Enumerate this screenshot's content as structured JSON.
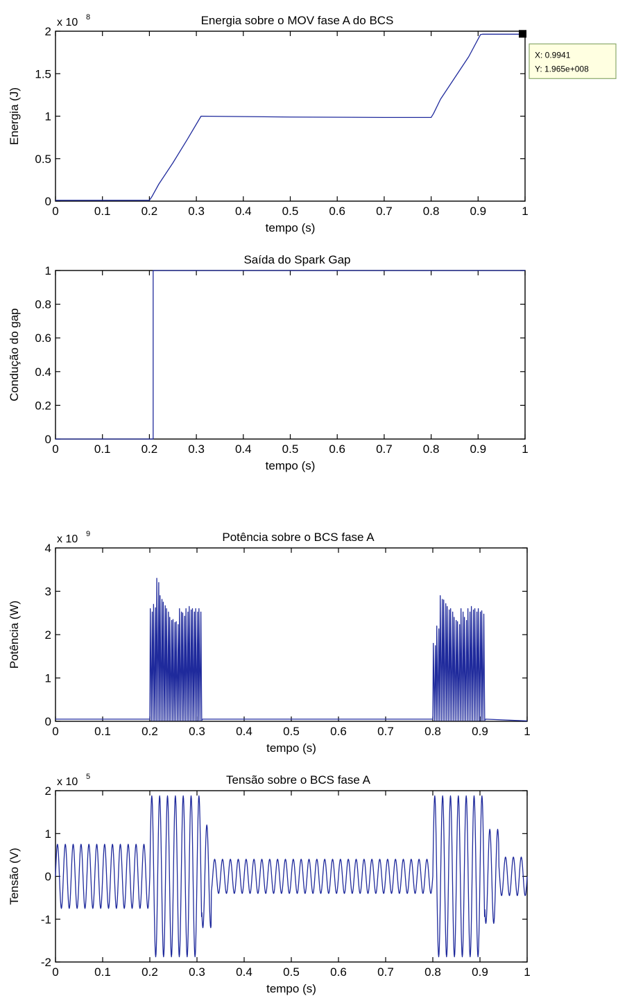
{
  "colors": {
    "line": "#1f2a9c",
    "axis": "#000000",
    "background": "#ffffff",
    "datatip_bg": "#ffffe1",
    "datatip_border": "#8aa86a"
  },
  "chart_data": [
    {
      "type": "line",
      "title": "Energia sobre o MOV fase A do BCS",
      "xlabel": "tempo (s)",
      "ylabel": "Energia (J)",
      "xlim": [
        0,
        1
      ],
      "ylim": [
        0,
        2
      ],
      "multiplier_label": "x 10",
      "multiplier_exp": "8",
      "xticks": [
        0,
        0.1,
        0.2,
        0.3,
        0.4,
        0.5,
        0.6,
        0.7,
        0.8,
        0.9,
        1
      ],
      "xtick_labels": [
        "0",
        "0.1",
        "0.2",
        "0.3",
        "0.4",
        "0.5",
        "0.6",
        "0.7",
        "0.8",
        "0.9",
        "1"
      ],
      "yticks": [
        0,
        0.5,
        1,
        1.5,
        2
      ],
      "ytick_labels": [
        "0",
        "0.5",
        "1",
        "1.5",
        "2"
      ],
      "grid": false,
      "series": [
        {
          "x": [
            0,
            0.2,
            0.205,
            0.22,
            0.25,
            0.28,
            0.31,
            0.5,
            0.7,
            0.8,
            0.805,
            0.82,
            0.85,
            0.88,
            0.905,
            0.91,
            0.9941,
            1.0
          ],
          "y": [
            0.01,
            0.01,
            0.05,
            0.2,
            0.45,
            0.72,
            1.0,
            0.99,
            0.985,
            0.985,
            1.03,
            1.2,
            1.45,
            1.7,
            1.96,
            1.965,
            1.965,
            1.965
          ]
        }
      ],
      "datatip": {
        "x": 0.9941,
        "y": 1.965,
        "x_text": "X: 0.9941",
        "y_text": "Y: 1.965e+008"
      }
    },
    {
      "type": "line",
      "title": "Saída do Spark Gap",
      "xlabel": "tempo (s)",
      "ylabel": "Condução do gap",
      "xlim": [
        0,
        1
      ],
      "ylim": [
        0,
        1
      ],
      "xticks": [
        0,
        0.1,
        0.2,
        0.3,
        0.4,
        0.5,
        0.6,
        0.7,
        0.8,
        0.9,
        1
      ],
      "xtick_labels": [
        "0",
        "0.1",
        "0.2",
        "0.3",
        "0.4",
        "0.5",
        "0.6",
        "0.7",
        "0.8",
        "0.9",
        "1"
      ],
      "yticks": [
        0,
        0.2,
        0.4,
        0.6,
        0.8,
        1
      ],
      "ytick_labels": [
        "0",
        "0.2",
        "0.4",
        "0.6",
        "0.8",
        "1"
      ],
      "grid": false,
      "series": [
        {
          "x": [
            0,
            0.208,
            0.208,
            1.0
          ],
          "y": [
            0,
            0,
            1,
            1
          ]
        }
      ]
    },
    {
      "type": "line",
      "title": "Potência sobre o BCS fase A",
      "xlabel": "tempo (s)",
      "ylabel": "Potência (W)",
      "xlim": [
        0,
        1
      ],
      "ylim": [
        0,
        4
      ],
      "multiplier_label": "x 10",
      "multiplier_exp": "9",
      "xticks": [
        0,
        0.1,
        0.2,
        0.3,
        0.4,
        0.5,
        0.6,
        0.7,
        0.8,
        0.9,
        1
      ],
      "xtick_labels": [
        "0",
        "0.1",
        "0.2",
        "0.3",
        "0.4",
        "0.5",
        "0.6",
        "0.7",
        "0.8",
        "0.9",
        "1"
      ],
      "yticks": [
        0,
        1,
        2,
        3,
        4
      ],
      "ytick_labels": [
        "0",
        "1",
        "2",
        "3",
        "4"
      ],
      "grid": false,
      "baseline": 0.05,
      "bursts": [
        {
          "start": 0.2,
          "end": 0.31,
          "peaks": [
            2.6,
            2.7,
            3.3,
            2.9,
            2.75,
            2.6,
            2.4,
            2.35,
            2.3,
            2.6,
            2.5,
            2.6,
            2.65,
            2.6,
            2.6,
            2.6
          ]
        },
        {
          "start": 0.8,
          "end": 0.91,
          "peaks": [
            1.8,
            2.2,
            2.9,
            2.8,
            2.65,
            2.6,
            2.4,
            2.3,
            2.6,
            2.4,
            2.6,
            2.65,
            2.6,
            2.6,
            2.55
          ]
        }
      ]
    },
    {
      "type": "line",
      "title": "Tensão sobre o BCS fase A",
      "xlabel": "tempo (s)",
      "ylabel": "Tensão (V)",
      "xlim": [
        0,
        1
      ],
      "ylim": [
        -2,
        2
      ],
      "multiplier_label": "x 10",
      "multiplier_exp": "5",
      "xticks": [
        0,
        0.1,
        0.2,
        0.3,
        0.4,
        0.5,
        0.6,
        0.7,
        0.8,
        0.9,
        1
      ],
      "xtick_labels": [
        "0",
        "0.1",
        "0.2",
        "0.3",
        "0.4",
        "0.5",
        "0.6",
        "0.7",
        "0.8",
        "0.9",
        "1"
      ],
      "yticks": [
        -2,
        -1,
        0,
        1,
        2
      ],
      "ytick_labels": [
        "-2",
        "-1",
        "0",
        "1",
        "2"
      ],
      "grid": false,
      "frequency_hz": 60,
      "segments": [
        {
          "start": 0.0,
          "end": 0.2,
          "amplitude": 0.75,
          "offset": 0.0
        },
        {
          "start": 0.2,
          "end": 0.31,
          "amplitude": 1.88,
          "offset": 0.0
        },
        {
          "start": 0.31,
          "end": 0.33,
          "amplitude": 1.2,
          "offset": 0.0
        },
        {
          "start": 0.33,
          "end": 0.8,
          "amplitude": 0.4,
          "offset": 0.0
        },
        {
          "start": 0.8,
          "end": 0.91,
          "amplitude": 1.88,
          "offset": 0.0
        },
        {
          "start": 0.91,
          "end": 0.94,
          "amplitude": 1.1,
          "offset": 0.0
        },
        {
          "start": 0.94,
          "end": 1.0,
          "amplitude": 0.45,
          "offset": 0.0
        }
      ]
    }
  ]
}
